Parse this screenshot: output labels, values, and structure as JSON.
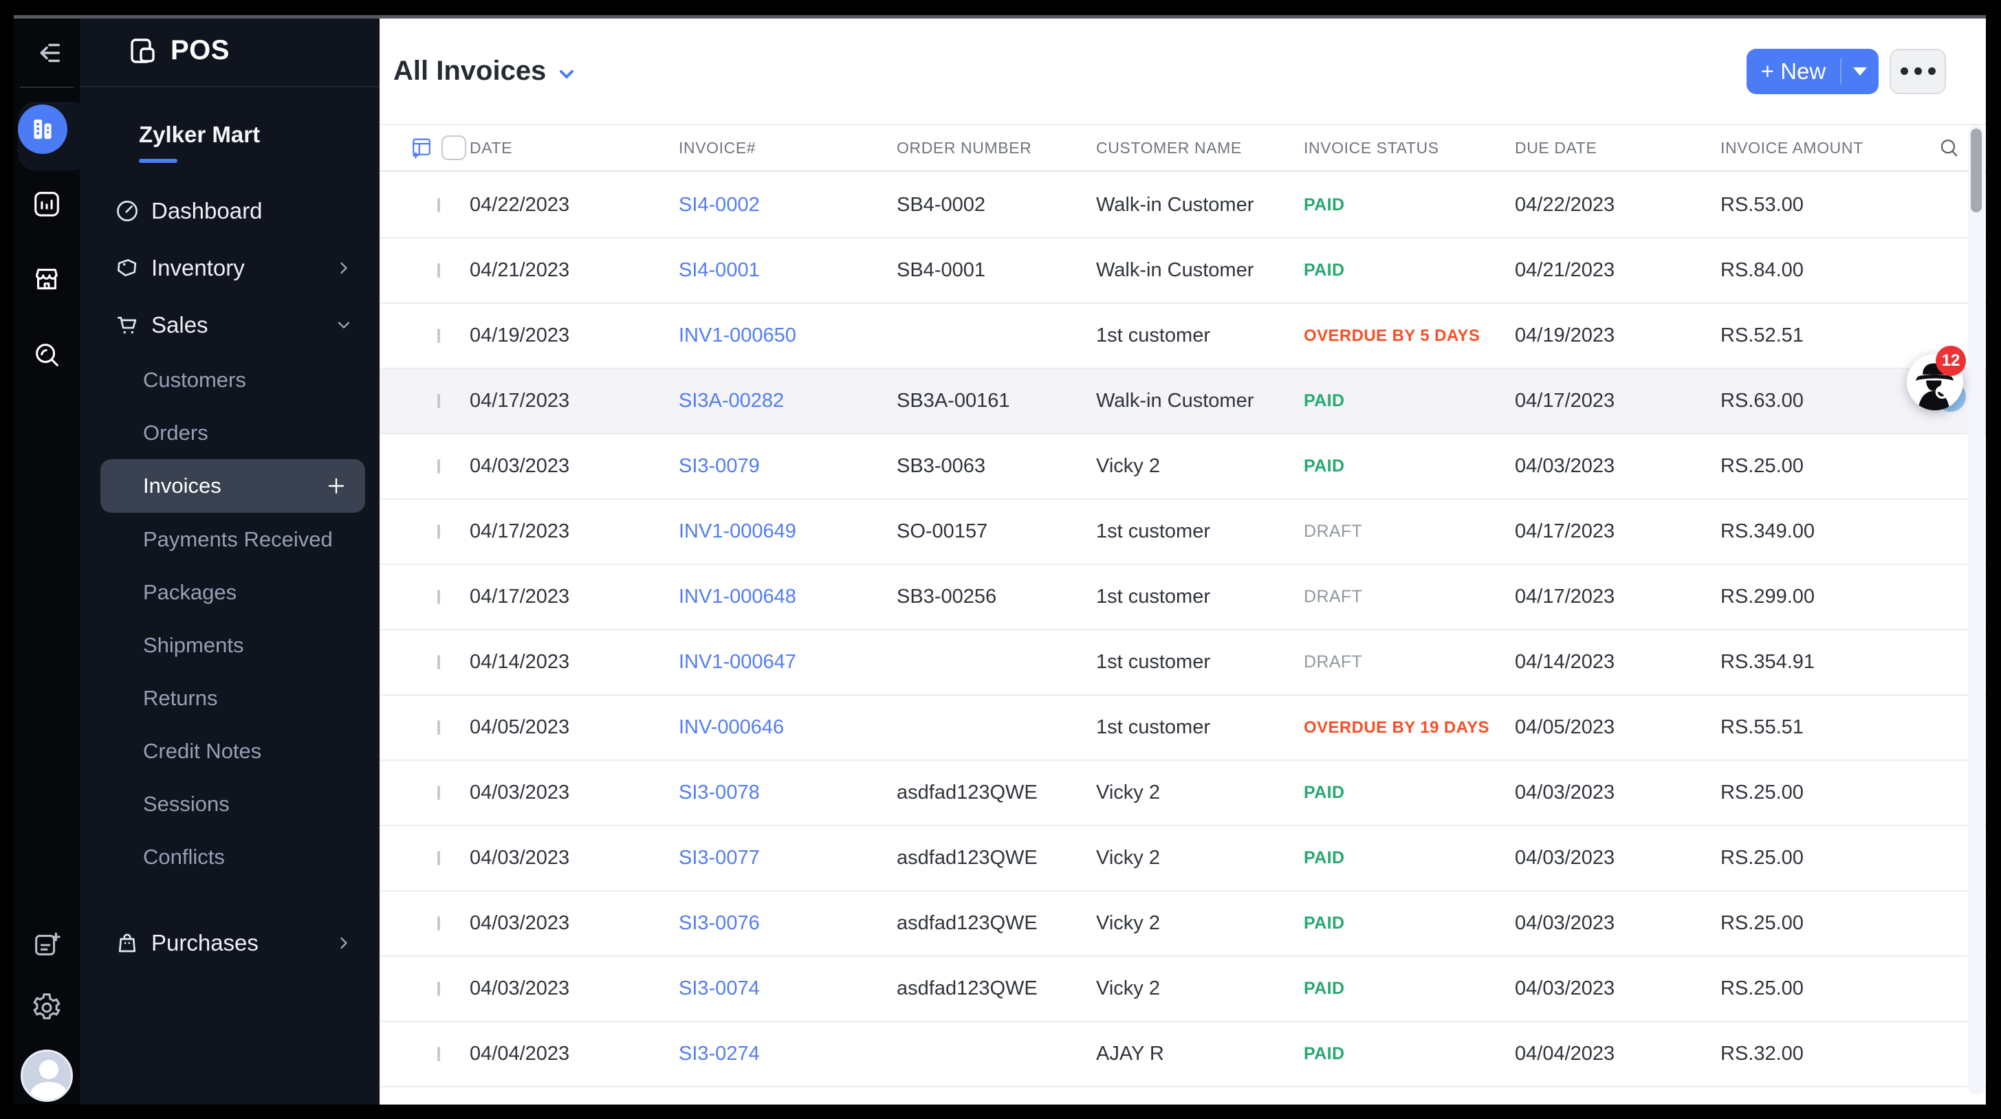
{
  "app": {
    "logo_text": "POS",
    "org_name": "Zylker Mart"
  },
  "sidebar": {
    "menu": [
      {
        "label": "Dashboard",
        "type": "top",
        "icon": "dashboard"
      },
      {
        "label": "Inventory",
        "type": "top",
        "icon": "inventory",
        "chevron": "right"
      },
      {
        "label": "Sales",
        "type": "top",
        "icon": "sales",
        "chevron": "down"
      },
      {
        "label": "Customers",
        "type": "sub"
      },
      {
        "label": "Orders",
        "type": "sub"
      },
      {
        "label": "Invoices",
        "type": "sub",
        "active": true,
        "plus": true
      },
      {
        "label": "Payments Received",
        "type": "sub"
      },
      {
        "label": "Packages",
        "type": "sub"
      },
      {
        "label": "Shipments",
        "type": "sub"
      },
      {
        "label": "Returns",
        "type": "sub"
      },
      {
        "label": "Credit Notes",
        "type": "sub"
      },
      {
        "label": "Sessions",
        "type": "sub"
      },
      {
        "label": "Conflicts",
        "type": "sub"
      },
      {
        "label": "Purchases",
        "type": "top",
        "icon": "purchases",
        "chevron": "right",
        "gap": true
      }
    ]
  },
  "header": {
    "title": "All Invoices",
    "new_button_label": "+ New"
  },
  "table": {
    "columns": [
      "DATE",
      "INVOICE#",
      "ORDER NUMBER",
      "CUSTOMER NAME",
      "INVOICE STATUS",
      "DUE DATE",
      "INVOICE AMOUNT"
    ],
    "rows": [
      {
        "date": "04/22/2023",
        "invoice": "SI4-0002",
        "order": "SB4-0002",
        "customer": "Walk-in Customer",
        "status": "PAID",
        "status_type": "paid",
        "due": "04/22/2023",
        "amount": "RS.53.00"
      },
      {
        "date": "04/21/2023",
        "invoice": "SI4-0001",
        "order": "SB4-0001",
        "customer": "Walk-in Customer",
        "status": "PAID",
        "status_type": "paid",
        "due": "04/21/2023",
        "amount": "RS.84.00"
      },
      {
        "date": "04/19/2023",
        "invoice": "INV1-000650",
        "order": "",
        "customer": "1st customer",
        "status": "OVERDUE BY 5 DAYS",
        "status_type": "overdue",
        "due": "04/19/2023",
        "amount": "RS.52.51"
      },
      {
        "date": "04/17/2023",
        "invoice": "SI3A-00282",
        "order": "SB3A-00161",
        "customer": "Walk-in Customer",
        "status": "PAID",
        "status_type": "paid",
        "due": "04/17/2023",
        "amount": "RS.63.00",
        "highlighted": true
      },
      {
        "date": "04/03/2023",
        "invoice": "SI3-0079",
        "order": "SB3-0063",
        "customer": "Vicky 2",
        "status": "PAID",
        "status_type": "paid",
        "due": "04/03/2023",
        "amount": "RS.25.00"
      },
      {
        "date": "04/17/2023",
        "invoice": "INV1-000649",
        "order": "SO-00157",
        "customer": "1st customer",
        "status": "DRAFT",
        "status_type": "draft",
        "due": "04/17/2023",
        "amount": "RS.349.00"
      },
      {
        "date": "04/17/2023",
        "invoice": "INV1-000648",
        "order": "SB3-00256",
        "customer": "1st customer",
        "status": "DRAFT",
        "status_type": "draft",
        "due": "04/17/2023",
        "amount": "RS.299.00"
      },
      {
        "date": "04/14/2023",
        "invoice": "INV1-000647",
        "order": "",
        "customer": "1st customer",
        "status": "DRAFT",
        "status_type": "draft",
        "due": "04/14/2023",
        "amount": "RS.354.91"
      },
      {
        "date": "04/05/2023",
        "invoice": "INV-000646",
        "order": "",
        "customer": "1st customer",
        "status": "OVERDUE BY 19 DAYS",
        "status_type": "overdue",
        "due": "04/05/2023",
        "amount": "RS.55.51"
      },
      {
        "date": "04/03/2023",
        "invoice": "SI3-0078",
        "order": "asdfad123QWE",
        "customer": "Vicky 2",
        "status": "PAID",
        "status_type": "paid",
        "due": "04/03/2023",
        "amount": "RS.25.00"
      },
      {
        "date": "04/03/2023",
        "invoice": "SI3-0077",
        "order": "asdfad123QWE",
        "customer": "Vicky 2",
        "status": "PAID",
        "status_type": "paid",
        "due": "04/03/2023",
        "amount": "RS.25.00"
      },
      {
        "date": "04/03/2023",
        "invoice": "SI3-0076",
        "order": "asdfad123QWE",
        "customer": "Vicky 2",
        "status": "PAID",
        "status_type": "paid",
        "due": "04/03/2023",
        "amount": "RS.25.00"
      },
      {
        "date": "04/03/2023",
        "invoice": "SI3-0074",
        "order": "asdfad123QWE",
        "customer": "Vicky 2",
        "status": "PAID",
        "status_type": "paid",
        "due": "04/03/2023",
        "amount": "RS.25.00"
      },
      {
        "date": "04/04/2023",
        "invoice": "SI3-0274",
        "order": "",
        "customer": "AJAY R",
        "status": "PAID",
        "status_type": "paid",
        "due": "04/04/2023",
        "amount": "RS.32.00"
      }
    ]
  },
  "fab": {
    "badge_count": "12"
  },
  "icons": {
    "rail": [
      "collapse-sidebar-icon",
      "organization-icon",
      "reports-icon",
      "store-icon",
      "search-icon",
      "new-document-icon",
      "settings-icon",
      "user-avatar"
    ],
    "header": [
      "chevron-down-icon",
      "plus-icon",
      "more-options-icon"
    ],
    "table": [
      "table-columns-icon",
      "search-icon",
      "checkbox"
    ]
  },
  "colors": {
    "accent": "#4b7bf5",
    "paid": "#27a870",
    "overdue": "#fa4f26",
    "draft": "#8f99a1",
    "badge": "#ee3135"
  }
}
